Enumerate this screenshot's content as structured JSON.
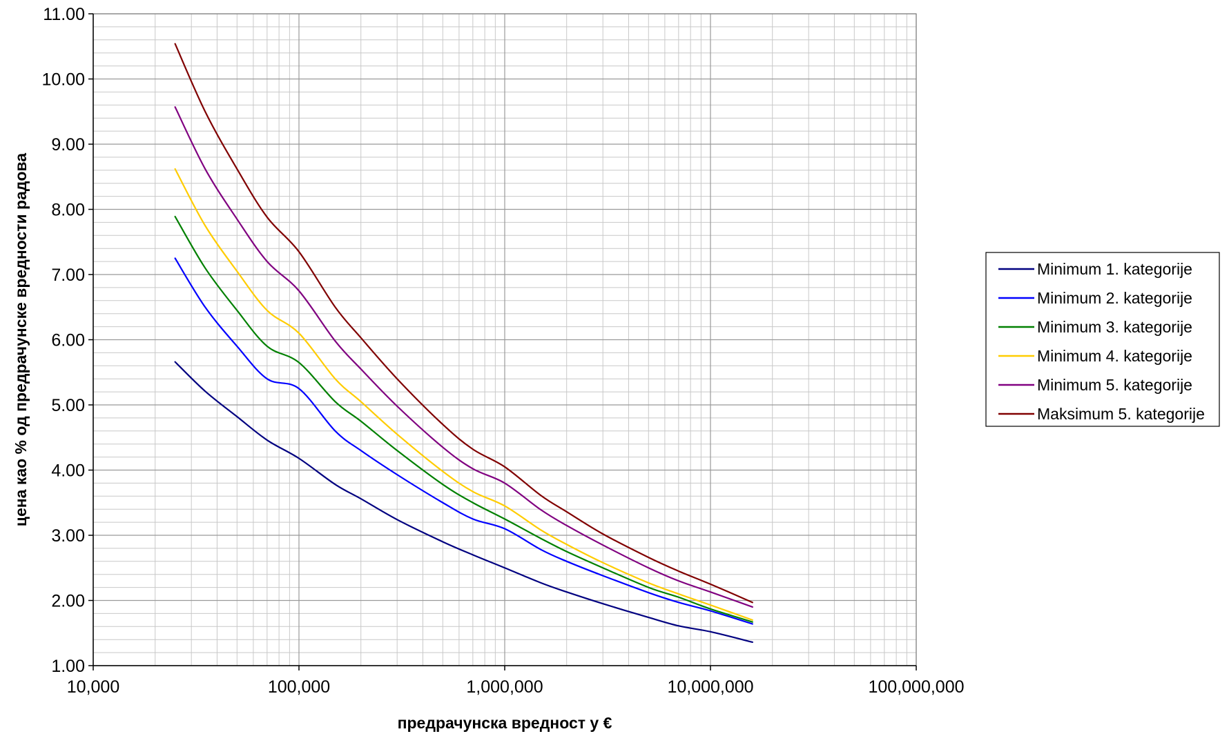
{
  "chart_data": {
    "type": "line",
    "xscale": "log",
    "xlabel": "предрачунска вредност у €",
    "ylabel": "цена као % од предрачунске вредности радова",
    "xlim": [
      10000,
      100000000
    ],
    "ylim": [
      1.0,
      11.0
    ],
    "xticks": [
      10000,
      100000,
      1000000,
      10000000,
      100000000
    ],
    "xtick_labels": [
      "10,000",
      "100,000",
      "1,000,000",
      "10,000,000",
      "100,000,000"
    ],
    "yticks": [
      1,
      2,
      3,
      4,
      5,
      6,
      7,
      8,
      9,
      10,
      11
    ],
    "ytick_labels": [
      "1.00",
      "2.00",
      "3.00",
      "4.00",
      "5.00",
      "6.00",
      "7.00",
      "8.00",
      "9.00",
      "10.00",
      "11.00"
    ],
    "grid": true,
    "legend_position": "right",
    "x": [
      25000,
      35000,
      50000,
      70000,
      100000,
      150000,
      200000,
      300000,
      500000,
      700000,
      1000000,
      1500000,
      2000000,
      3000000,
      5000000,
      7000000,
      10000000,
      16000000
    ],
    "series": [
      {
        "name": "Minimum 1. kategorije",
        "color": "#000080",
        "values": [
          5.66,
          5.21,
          4.82,
          4.46,
          4.18,
          3.78,
          3.56,
          3.24,
          2.9,
          2.7,
          2.5,
          2.27,
          2.13,
          1.95,
          1.74,
          1.61,
          1.52,
          1.36
        ]
      },
      {
        "name": "Minimum 2. kategorije",
        "color": "#0000ff",
        "values": [
          7.25,
          6.5,
          5.9,
          5.4,
          5.25,
          4.6,
          4.3,
          3.93,
          3.5,
          3.25,
          3.1,
          2.78,
          2.6,
          2.38,
          2.12,
          1.97,
          1.84,
          1.64
        ]
      },
      {
        "name": "Minimum 3. kategorije",
        "color": "#008000",
        "values": [
          7.89,
          7.1,
          6.45,
          5.9,
          5.65,
          5.05,
          4.75,
          4.3,
          3.78,
          3.5,
          3.25,
          2.95,
          2.75,
          2.5,
          2.2,
          2.05,
          1.87,
          1.67
        ]
      },
      {
        "name": "Minimum 4. kategorije",
        "color": "#ffcc00",
        "values": [
          8.62,
          7.75,
          7.05,
          6.45,
          6.1,
          5.4,
          5.05,
          4.55,
          3.98,
          3.67,
          3.45,
          3.08,
          2.86,
          2.58,
          2.27,
          2.1,
          1.93,
          1.7
        ]
      },
      {
        "name": "Minimum 5. kategorije",
        "color": "#800080",
        "values": [
          9.57,
          8.62,
          7.85,
          7.2,
          6.75,
          5.98,
          5.55,
          4.98,
          4.35,
          4.02,
          3.8,
          3.39,
          3.15,
          2.85,
          2.5,
          2.3,
          2.13,
          1.9
        ]
      },
      {
        "name": "Maksimum 5. kategorije",
        "color": "#800000",
        "values": [
          10.54,
          9.5,
          8.62,
          7.88,
          7.35,
          6.5,
          6.03,
          5.4,
          4.7,
          4.32,
          4.05,
          3.61,
          3.36,
          3.02,
          2.66,
          2.45,
          2.25,
          1.97
        ]
      }
    ]
  }
}
